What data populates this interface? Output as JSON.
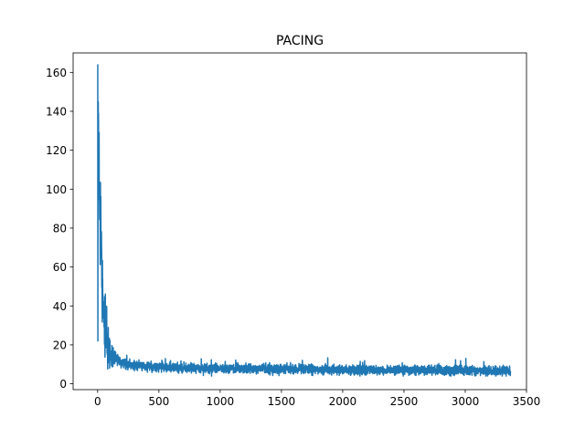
{
  "chart_data": {
    "type": "line",
    "title": "PACING",
    "xlabel": "",
    "ylabel": "",
    "xlim": [
      -200,
      3500
    ],
    "ylim": [
      -3,
      170
    ],
    "x_ticks": [
      0,
      500,
      1000,
      1500,
      2000,
      2500,
      3000,
      3500
    ],
    "x_tick_labels": [
      "0",
      "500",
      "1000",
      "1500",
      "2000",
      "2500",
      "3000",
      "3500"
    ],
    "y_ticks": [
      0,
      20,
      40,
      60,
      80,
      100,
      120,
      140,
      160
    ],
    "y_tick_labels": [
      "0",
      "20",
      "40",
      "60",
      "80",
      "100",
      "120",
      "140",
      "160"
    ],
    "grid": false,
    "series": [
      {
        "name": "PACING",
        "color": "#1f77b4",
        "line_width": 1.5,
        "n_points": 3370,
        "x_range": [
          0,
          3369
        ],
        "trend_x": [
          0,
          20,
          45,
          80,
          120,
          200,
          300,
          500,
          800,
          1200,
          1600,
          2000,
          2500,
          3000,
          3369
        ],
        "trend_y": [
          150,
          85,
          38,
          20,
          14,
          11,
          9.5,
          8.5,
          8,
          7.8,
          7.5,
          7,
          7,
          6.8,
          6.5
        ],
        "noise_amplitude": 2.2,
        "spike_x": [
          0,
          5,
          10,
          15,
          20,
          30,
          45,
          70,
          100
        ],
        "spike_y": [
          164,
          145,
          121,
          98,
          102,
          65,
          35,
          27,
          22
        ],
        "y_min_observed": 4,
        "y_max_observed": 164
      }
    ]
  }
}
